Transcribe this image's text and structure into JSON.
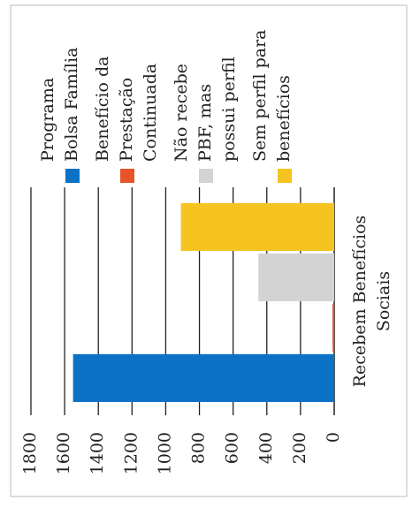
{
  "chart_data": {
    "type": "bar",
    "categories": [
      "Recebem Benefícios Sociais"
    ],
    "series": [
      {
        "name": "Programa Bolsa Família",
        "color": "#0b72c6",
        "values": [
          1550
        ]
      },
      {
        "name": "Benefício da Prestação Continuada",
        "color": "#e8542a",
        "values": [
          10
        ]
      },
      {
        "name": "Não recebe PBF, mas possui perfil",
        "color": "#d3d3d3",
        "values": [
          450
        ]
      },
      {
        "name": "Sem perfil para benefícios",
        "color": "#f6c420",
        "values": [
          910
        ]
      }
    ],
    "ylim": [
      0,
      1800
    ],
    "yticks": [
      0,
      200,
      400,
      600,
      800,
      1000,
      1200,
      1400,
      1600,
      1800
    ],
    "grid": true,
    "legend": "top"
  }
}
